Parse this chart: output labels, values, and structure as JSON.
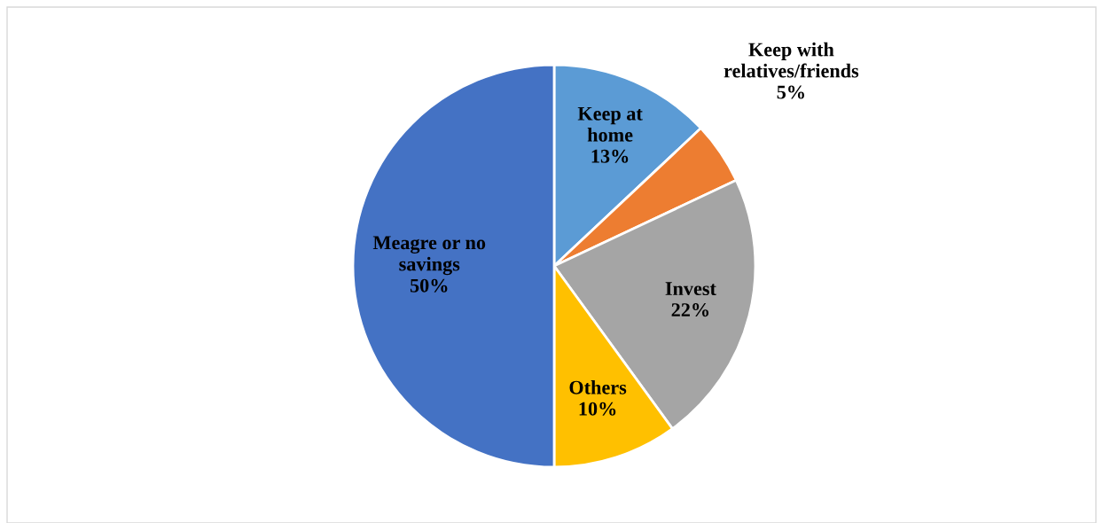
{
  "chart_data": {
    "type": "pie",
    "categories": [
      "Keep at\nhome",
      "Keep with\nrelatives/friends",
      "Invest",
      "Others",
      "Meagre or no\nsavings"
    ],
    "values": [
      13,
      5,
      22,
      10,
      50
    ],
    "colors": [
      "#5b9bd5",
      "#ed7d31",
      "#a5a5a5",
      "#ffc000",
      "#4472c4"
    ],
    "value_labels": [
      "13%",
      "5%",
      "22%",
      "10%",
      "50%"
    ],
    "legend": false
  }
}
